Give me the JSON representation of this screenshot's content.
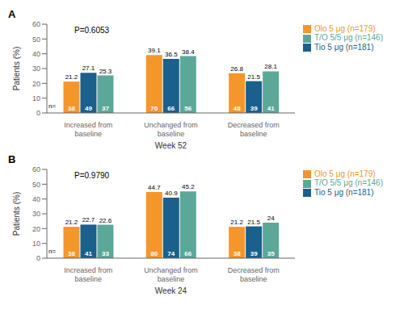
{
  "chart_data": [
    {
      "type": "bar",
      "title": "A",
      "annotation": "P=0.6053",
      "n_label": "n=",
      "xlabel": "Week 52",
      "ylabel": "Patients (%)",
      "categories": [
        "Increased from baseline",
        "Unchanged from baseline",
        "Decreased from baseline"
      ],
      "series": [
        {
          "name": "Olo 5 μg (n=179)",
          "color": "#F4962A",
          "values": [
            21.2,
            39.1,
            26.8
          ],
          "ns": [
            38,
            70,
            48
          ]
        },
        {
          "name": "Tio 5 μg (n=181)",
          "color": "#1B5F8C",
          "values": [
            27.1,
            36.5,
            21.5
          ],
          "ns": [
            49,
            66,
            39
          ]
        },
        {
          "name": "T/O 5/5 μg (n=146)",
          "color": "#5BA898",
          "values": [
            25.3,
            38.4,
            28.1
          ],
          "ns": [
            37,
            56,
            41
          ]
        }
      ],
      "ylim": [
        0,
        60
      ],
      "yticks": [
        0,
        10,
        20,
        30,
        40,
        50,
        60
      ],
      "data_labels": true,
      "legend": "right"
    },
    {
      "type": "bar",
      "title": "B",
      "annotation": "P=0.9790",
      "n_label": "n=",
      "xlabel": "Week 24",
      "ylabel": "Patients (%)",
      "categories": [
        "Increased from baseline",
        "Unchanged from baseline",
        "Decreased from baseline"
      ],
      "series": [
        {
          "name": "Olo 5 μg (n=179)",
          "color": "#F4962A",
          "values": [
            21.2,
            44.7,
            21.2
          ],
          "ns": [
            38,
            80,
            38
          ]
        },
        {
          "name": "Tio 5 μg (n=181)",
          "color": "#1B5F8C",
          "values": [
            22.7,
            40.9,
            21.5
          ],
          "ns": [
            41,
            74,
            39
          ]
        },
        {
          "name": "T/O 5/5 μg (n=146)",
          "color": "#5BA898",
          "values": [
            22.6,
            45.2,
            24.0
          ],
          "ns": [
            33,
            66,
            35
          ]
        }
      ],
      "ylim": [
        0,
        60
      ],
      "yticks": [
        0,
        10,
        20,
        30,
        40,
        50,
        60
      ],
      "data_labels": true,
      "legend": "right"
    }
  ]
}
